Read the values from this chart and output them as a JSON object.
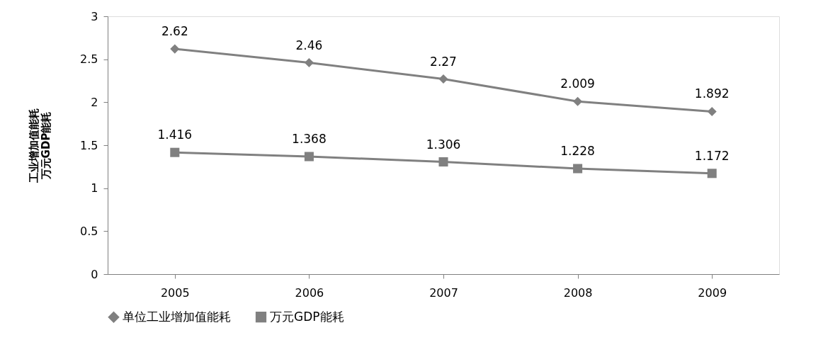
{
  "chart_data": {
    "type": "line",
    "ylabel": "工业增加值能耗万元GDP能耗",
    "categories": [
      "2005",
      "2006",
      "2007",
      "2008",
      "2009"
    ],
    "series": [
      {
        "name": "单位工业增加值能耗",
        "color": "#808080",
        "marker": "diamond",
        "values": [
          2.62,
          2.46,
          2.27,
          2.009,
          1.892
        ]
      },
      {
        "name": "万元GDP能耗",
        "color": "#808080",
        "marker": "square",
        "values": [
          1.416,
          1.368,
          1.306,
          1.228,
          1.172
        ]
      }
    ],
    "ylim": [
      0,
      3
    ],
    "yticks": [
      0,
      0.5,
      1,
      1.5,
      2,
      2.5,
      3
    ],
    "grid": false,
    "legend": "bottom",
    "data_labels": true
  }
}
